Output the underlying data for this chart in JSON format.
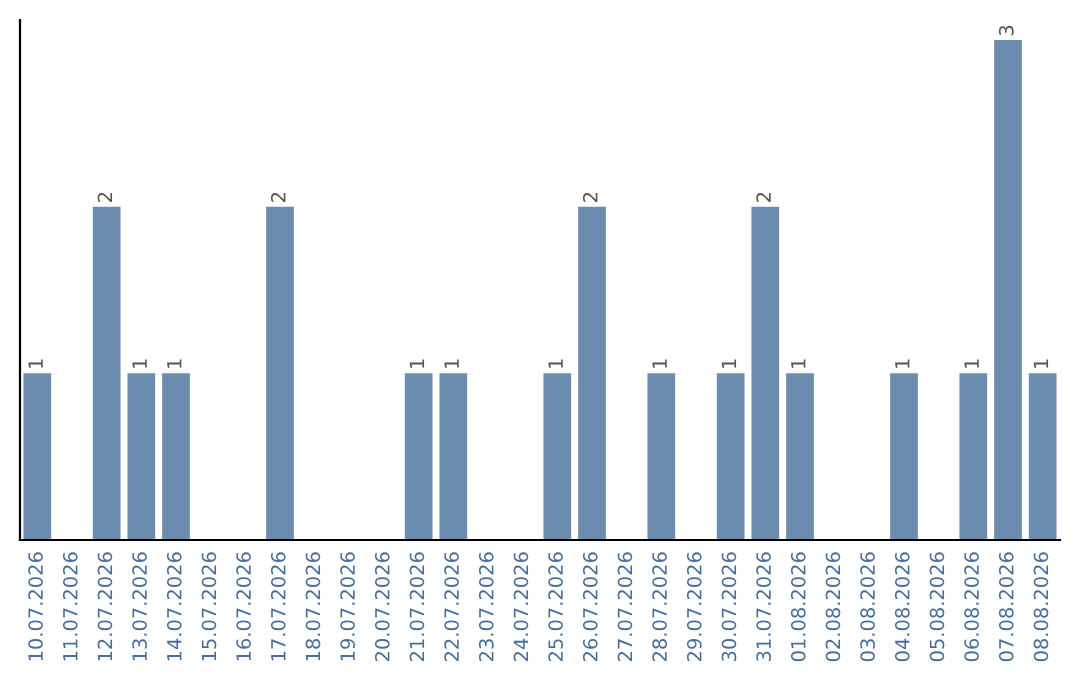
{
  "chart_data": {
    "type": "bar",
    "categories": [
      "10.07.2026",
      "11.07.2026",
      "12.07.2026",
      "13.07.2026",
      "14.07.2026",
      "15.07.2026",
      "16.07.2026",
      "17.07.2026",
      "18.07.2026",
      "19.07.2026",
      "20.07.2026",
      "21.07.2026",
      "22.07.2026",
      "23.07.2026",
      "24.07.2026",
      "25.07.2026",
      "26.07.2026",
      "27.07.2026",
      "28.07.2026",
      "29.07.2026",
      "30.07.2026",
      "31.07.2026",
      "01.08.2026",
      "02.08.2026",
      "03.08.2026",
      "04.08.2026",
      "05.08.2026",
      "06.08.2026",
      "07.08.2026",
      "08.08.2026"
    ],
    "values": [
      1,
      0,
      2,
      1,
      1,
      0,
      0,
      2,
      0,
      0,
      0,
      1,
      1,
      0,
      0,
      1,
      2,
      0,
      1,
      0,
      1,
      2,
      1,
      0,
      0,
      1,
      0,
      1,
      3,
      1
    ],
    "value_labels": [
      "1",
      null,
      "2",
      "1",
      "1",
      null,
      null,
      "2",
      null,
      null,
      null,
      "1",
      "1",
      null,
      null,
      "1",
      "2",
      null,
      "1",
      null,
      "1",
      "2",
      "1",
      null,
      null,
      "1",
      null,
      "1",
      "3",
      "1"
    ],
    "color": "#6b8cae",
    "ylim": [
      0,
      3.12
    ],
    "tick_labels": "x",
    "grid": false,
    "legend": false
  }
}
